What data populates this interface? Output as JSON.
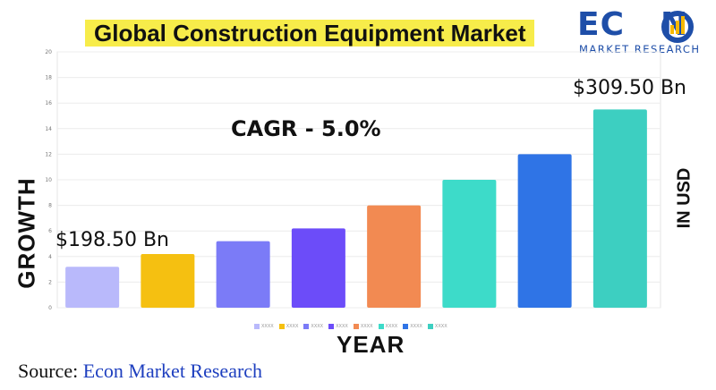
{
  "title": "Global Construction Equipment Market",
  "logo": {
    "word_left": "EC",
    "word_right": "N",
    "subtitle": "MARKET RESEARCH",
    "colors": {
      "brand": "#1e4ea8",
      "accent": "#f5b800"
    }
  },
  "annotations": {
    "cagr": "CAGR - 5.0%",
    "start_value": "$198.50 Bn",
    "end_value": "$309.50 Bn"
  },
  "source": {
    "prefix": "Source: ",
    "name": "Econ Market Research"
  },
  "chart_data": {
    "type": "bar",
    "categories": [
      "XXXX",
      "XXXX",
      "XXXX",
      "XXXX",
      "XXXX",
      "XXXX",
      "XXXX",
      "XXXX"
    ],
    "values": [
      3.2,
      4.2,
      5.2,
      6.2,
      8.0,
      10.0,
      12.0,
      15.5
    ],
    "colors": [
      "#b9b9fb",
      "#f5c011",
      "#7b7bf7",
      "#6c4cf9",
      "#f28a52",
      "#3ddbc9",
      "#2f74e6",
      "#3dcfc1"
    ],
    "ylim": [
      0,
      20
    ],
    "yticks": [
      0,
      2,
      4,
      6,
      8,
      10,
      12,
      14,
      16,
      18,
      20
    ],
    "ylabel": "GROWTH",
    "xlabel": "YEAR",
    "y2label": "IN USD",
    "legend_position": "bottom",
    "grid": true
  }
}
